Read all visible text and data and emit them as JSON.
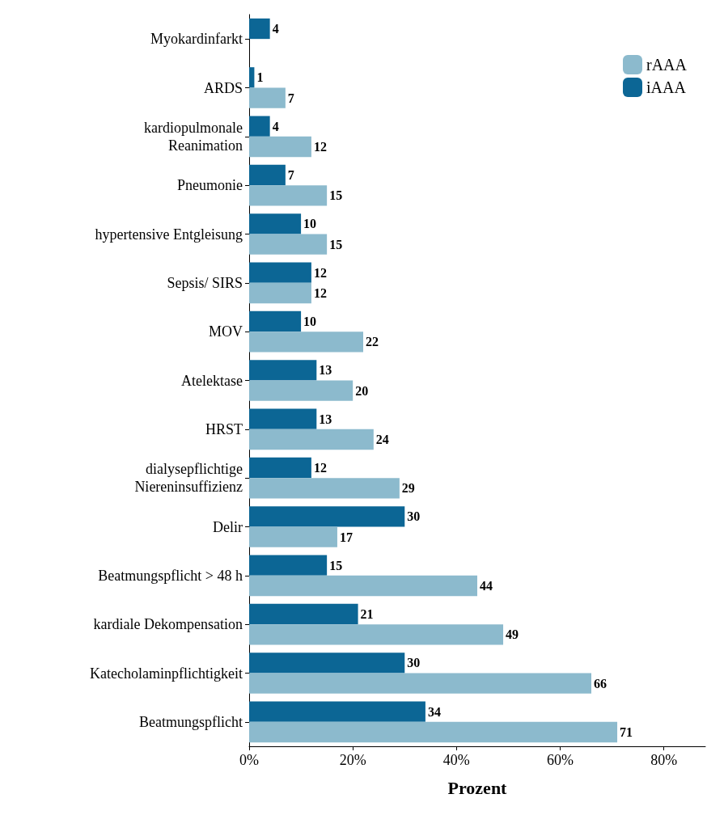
{
  "chart_data": {
    "type": "bar",
    "orientation": "horizontal",
    "xlabel": "Prozent",
    "categories": [
      "Myokardinfarkt",
      "ARDS",
      "kardiopulmonale\nReanimation",
      "Pneumonie",
      "hypertensive Entgleisung",
      "Sepsis/ SIRS",
      "MOV",
      "Atelektase",
      "HRST",
      "dialysepflichtige\nNiereninsuffizienz",
      "Delir",
      "Beatmungspflicht > 48 h",
      "kardiale Dekompensation",
      "Katecholaminpflichtigkeit",
      "Beatmungspflicht"
    ],
    "series": [
      {
        "name": "rAAA",
        "color": "#8cbacd",
        "values": [
          null,
          7,
          12,
          15,
          15,
          12,
          22,
          20,
          24,
          29,
          17,
          44,
          49,
          66,
          71
        ]
      },
      {
        "name": "iAAA",
        "color": "#0c6695",
        "values": [
          4,
          1,
          4,
          7,
          10,
          12,
          10,
          13,
          13,
          12,
          30,
          15,
          21,
          30,
          34
        ]
      }
    ],
    "xlim": [
      0,
      88
    ],
    "xticks": [
      {
        "value": 0,
        "label": "0%"
      },
      {
        "value": 20,
        "label": "20%"
      },
      {
        "value": 40,
        "label": "40%"
      },
      {
        "value": 60,
        "label": "60%"
      },
      {
        "value": 80,
        "label": "80%"
      }
    ],
    "data_labels": true,
    "legend": "top right",
    "grid": false
  }
}
